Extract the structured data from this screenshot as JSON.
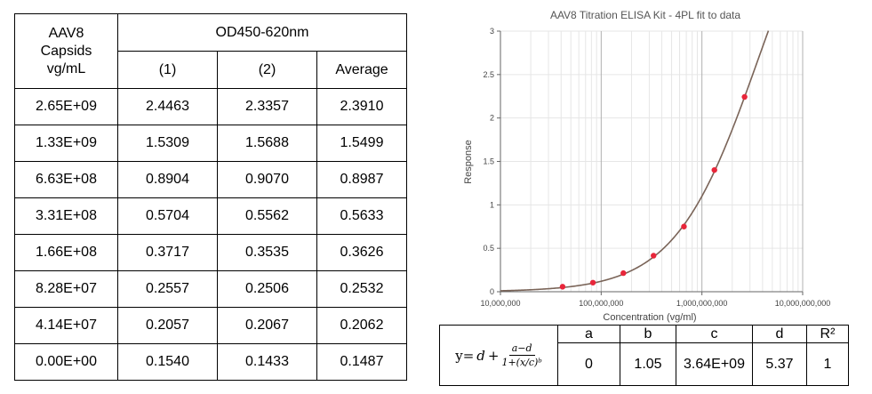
{
  "table": {
    "col0_header_lines": [
      "AAV8",
      "Capsids",
      "vg/mL"
    ],
    "group_header": "OD450-620nm",
    "sub_headers": [
      "(1)",
      "(2)",
      "Average"
    ],
    "rows": [
      [
        "2.65E+09",
        "2.4463",
        "2.3357",
        "2.3910"
      ],
      [
        "1.33E+09",
        "1.5309",
        "1.5688",
        "1.5499"
      ],
      [
        "6.63E+08",
        "0.8904",
        "0.9070",
        "0.8987"
      ],
      [
        "3.31E+08",
        "0.5704",
        "0.5562",
        "0.5633"
      ],
      [
        "1.66E+08",
        "0.3717",
        "0.3535",
        "0.3626"
      ],
      [
        "8.28E+07",
        "0.2557",
        "0.2506",
        "0.2532"
      ],
      [
        "4.14E+07",
        "0.2057",
        "0.2067",
        "0.2062"
      ],
      [
        "0.00E+00",
        "0.1540",
        "0.1433",
        "0.1487"
      ]
    ]
  },
  "chart_data": {
    "type": "scatter",
    "title": "AAV8 Titration ELISA Kit - 4PL fit to data",
    "xlabel": "Concentration (vg/ml)",
    "ylabel": "Response",
    "x_scale": "log",
    "xlim": [
      10000000,
      10000000000
    ],
    "ylim": [
      0,
      3
    ],
    "x_ticks": [
      "10,000,000",
      "100,000,000",
      "1,000,000,000",
      "10,000,000,000"
    ],
    "y_ticks": [
      "0",
      "0.5",
      "1",
      "1.5",
      "2",
      "2.5",
      "3"
    ],
    "grid": true,
    "series": [
      {
        "x": [
          41400000,
          82800000,
          166000000,
          331000000,
          663000000,
          1330000000,
          2650000000
        ],
        "y": [
          0.0575,
          0.1045,
          0.2139,
          0.4146,
          0.75,
          1.4012,
          2.2423
        ]
      }
    ],
    "fit_curve": {
      "model": "4PL",
      "a": 0,
      "b": 1.05,
      "c": 3640000000,
      "d": 5.37
    },
    "colors": {
      "points": "#e8263a",
      "curve": "#7a6458",
      "grid_minor": "#e6e6e6",
      "grid_major": "#b0b0b0"
    }
  },
  "equation": {
    "prefix": "y=",
    "d": "d",
    "plus": "+",
    "frac_num": "a−d",
    "frac_den": "1+(x/c)ᵇ",
    "headers": [
      "a",
      "b",
      "c",
      "d",
      "R²"
    ],
    "values": [
      "0",
      "1.05",
      "3.64E+09",
      "5.37",
      "1"
    ]
  }
}
